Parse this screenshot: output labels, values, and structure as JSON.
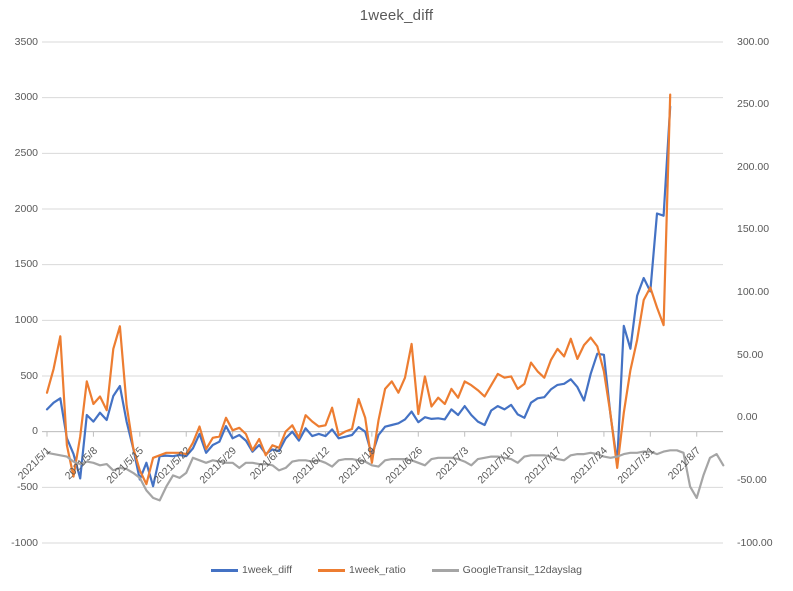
{
  "chart_data": {
    "type": "line",
    "title": "1week_diff",
    "grid": true,
    "legend_position": "bottom",
    "x_axis": {
      "start_date": "2021/5/1",
      "frequency": "daily",
      "tick_positions_days": [
        0,
        7,
        14,
        21,
        28,
        35,
        42,
        49,
        56,
        63,
        70,
        77,
        84,
        91,
        98
      ],
      "tick_labels": [
        "2021/5/1",
        "2021/5/8",
        "2021/5/15",
        "2021/5/22",
        "2021/5/29",
        "2021/6/5",
        "2021/6/12",
        "2021/6/19",
        "2021/6/26",
        "2021/7/3",
        "2021/7/10",
        "2021/7/17",
        "2021/7/24",
        "2021/7/31",
        "2021/8/7"
      ]
    },
    "y_left": {
      "min": -1000,
      "max": 3500,
      "step": 500,
      "tick_labels": [
        "3500",
        "3000",
        "2500",
        "2000",
        "1500",
        "1000",
        "500",
        "0",
        "-500",
        "-1000"
      ]
    },
    "y_right": {
      "min": -100,
      "max": 300,
      "step": 50,
      "tick_labels": [
        "300.00",
        "250.00",
        "200.00",
        "150.00",
        "100.00",
        "50.00",
        "0.00",
        "-50.00",
        "-100.00"
      ]
    },
    "series": [
      {
        "name": "1week_diff",
        "color": "#4472C4",
        "axis": "left",
        "values": [
          200,
          260,
          300,
          -60,
          -200,
          -420,
          150,
          90,
          170,
          105,
          320,
          410,
          90,
          -150,
          -430,
          -280,
          -490,
          -220,
          -215,
          -220,
          -210,
          -220,
          -150,
          -20,
          -190,
          -120,
          -90,
          50,
          -60,
          -30,
          -80,
          -180,
          -120,
          -200,
          -160,
          -175,
          -60,
          0,
          -80,
          30,
          -40,
          -20,
          -40,
          20,
          -60,
          -45,
          -30,
          40,
          0,
          -210,
          -30,
          45,
          60,
          75,
          110,
          180,
          85,
          130,
          115,
          120,
          110,
          200,
          150,
          230,
          150,
          90,
          60,
          190,
          230,
          200,
          240,
          155,
          125,
          260,
          300,
          310,
          380,
          420,
          430,
          470,
          400,
          280,
          520,
          700,
          690,
          150,
          -280,
          950,
          745,
          1220,
          1380,
          1260,
          1960,
          1940,
          2920
        ]
      },
      {
        "name": "1week_ratio",
        "color": "#ED7D31",
        "axis": "right",
        "values": [
          20,
          39,
          65,
          -22,
          -47,
          -15,
          29,
          11,
          17,
          6,
          55,
          73,
          10,
          -24,
          -42,
          -53,
          -32,
          -30,
          -28,
          -28,
          -28,
          -29,
          -20,
          -7,
          -25,
          -16,
          -15,
          0,
          -10,
          -8,
          -13,
          -26,
          -17,
          -30,
          -22,
          -24,
          -11,
          -6,
          -16,
          2,
          -3,
          -7,
          -6,
          8,
          -14,
          -11,
          -9,
          15,
          0,
          -36,
          -2,
          23,
          29,
          20,
          32,
          59,
          3,
          33,
          9,
          16,
          11,
          23,
          16,
          29,
          26,
          22,
          17,
          26,
          35,
          32,
          33,
          23,
          27,
          44,
          37,
          32,
          46,
          55,
          49,
          63,
          47,
          58,
          64,
          57,
          37,
          3,
          -40,
          4,
          38,
          62,
          94,
          104,
          88,
          74,
          258
        ]
      },
      {
        "name": "GoogleTransit_12dayslag",
        "color": "#A5A5A5",
        "axis": "right",
        "values": [
          -28,
          -29,
          -30,
          -31,
          -35,
          -37,
          -35,
          -36,
          -38,
          -37,
          -42,
          -40,
          -41,
          -44,
          -48,
          -58,
          -64,
          -66,
          -55,
          -46,
          -48,
          -44,
          -32,
          -34,
          -36,
          -34,
          -35,
          -36,
          -36,
          -40,
          -36,
          -36,
          -37,
          -37,
          -38,
          -42,
          -40,
          -35,
          -34,
          -34,
          -35,
          -34,
          -36,
          -39,
          -34,
          -33,
          -33,
          -34,
          -35,
          -38,
          -39,
          -34,
          -33,
          -33,
          -33,
          -34,
          -36,
          -38,
          -33,
          -32,
          -32,
          -32,
          -33,
          -35,
          -38,
          -33,
          -32,
          -31,
          -31,
          -32,
          -33,
          -36,
          -31,
          -30,
          -30,
          -30,
          -31,
          -33,
          -34,
          -30,
          -29,
          -29,
          -28,
          -29,
          -31,
          -32,
          -31,
          -29,
          -28,
          -28,
          -27,
          -27,
          -29,
          -27,
          -26,
          -26,
          -28,
          -55,
          -64,
          -46,
          -32,
          -29,
          -38
        ]
      }
    ]
  }
}
